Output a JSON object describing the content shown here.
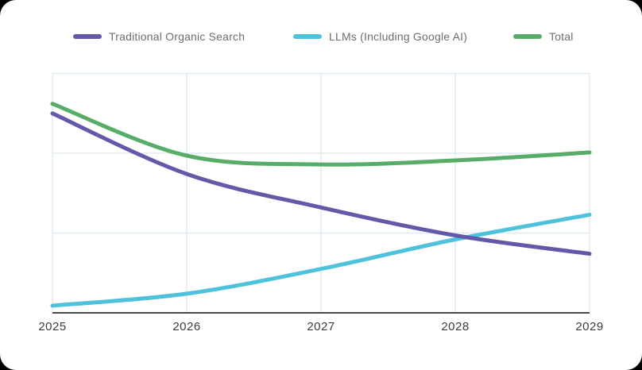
{
  "card": {
    "background": "#ffffff",
    "page_background": "#000000"
  },
  "chart_data": {
    "type": "line",
    "title": "",
    "xlabel": "",
    "ylabel": "",
    "categories": [
      "2025",
      "2026",
      "2027",
      "2028",
      "2029"
    ],
    "series": [
      {
        "name": "LLMs (Including Google AI)",
        "color": "#4EC1DC",
        "values": [
          0.09,
          0.24,
          0.55,
          0.92,
          1.23
        ]
      },
      {
        "name": "Traditional Organic Search",
        "color": "#6459A8",
        "values": [
          2.5,
          1.74,
          1.32,
          0.97,
          0.74
        ]
      },
      {
        "name": "Total",
        "color": "#57AD68",
        "values": [
          2.62,
          1.97,
          1.86,
          1.91,
          2.01
        ]
      }
    ],
    "legend_order": [
      1,
      0,
      2
    ],
    "ylim": [
      0,
      3
    ],
    "y_axis_labels_visible": false,
    "grid": true,
    "legend_position": "top",
    "colors": {
      "grid": "#E0ECF1",
      "axis": "#4A4A4A",
      "tick_label": "#3B3B3B",
      "legend_text": "#6E6E6E"
    }
  }
}
